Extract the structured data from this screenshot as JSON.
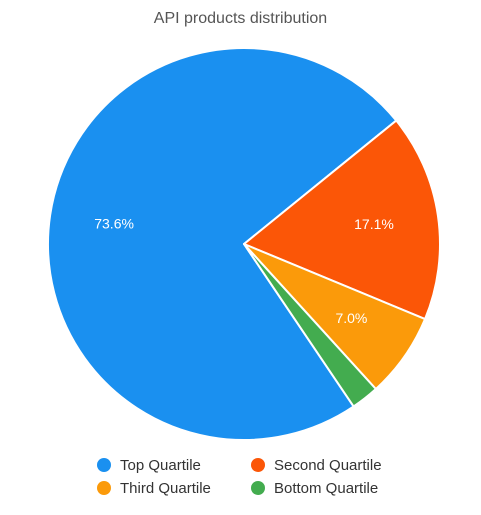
{
  "chart_data": {
    "type": "pie",
    "title": "API products distribution",
    "slices": [
      {
        "name": "Top Quartile",
        "value": 73.6,
        "label": "73.6%",
        "color": "#1a90f0"
      },
      {
        "name": "Second Quartile",
        "value": 17.1,
        "label": "17.1%",
        "color": "#fb5607"
      },
      {
        "name": "Third Quartile",
        "value": 7.0,
        "label": "7.0%",
        "color": "#fb9a0a"
      },
      {
        "name": "Bottom Quartile",
        "value": 2.3,
        "label": "",
        "color": "#43ac4f"
      }
    ],
    "legend_position": "bottom"
  }
}
